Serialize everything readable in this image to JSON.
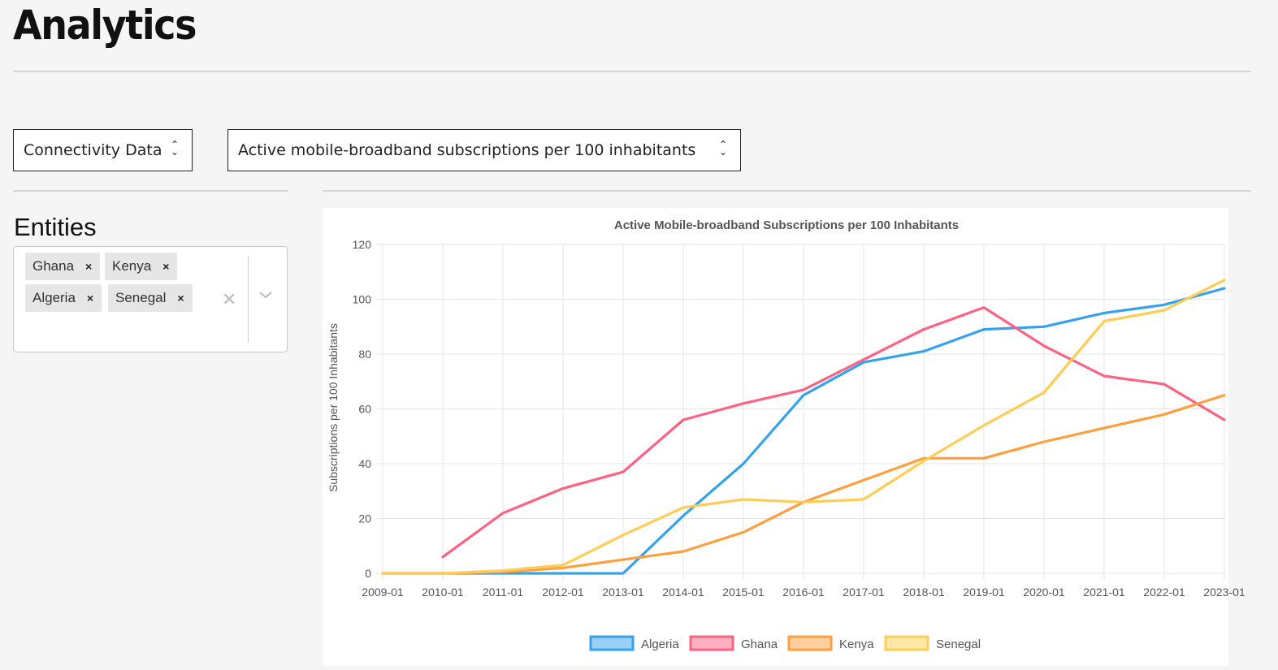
{
  "page": {
    "title": "Analytics"
  },
  "controls": {
    "dataset_select": {
      "value": "Connectivity Data"
    },
    "indicator_select": {
      "value": "Active mobile-broadband subscriptions per 100 inhabitants"
    }
  },
  "entities": {
    "heading": "Entities",
    "selected": [
      "Ghana",
      "Kenya",
      "Algeria",
      "Senegal"
    ],
    "remove_symbol": "×",
    "clear_symbol": "✕"
  },
  "colors": {
    "Algeria": "#36a2eb",
    "Ghana": "#ff6384",
    "Kenya": "#ff9f40",
    "Senegal": "#ffcd56"
  },
  "chart_data": {
    "type": "line",
    "title": "Active Mobile-broadband Subscriptions per 100 Inhabitants",
    "xlabel": "",
    "ylabel": "Subscriptions per 100 Inhabitants",
    "ylim": [
      0,
      120
    ],
    "yticks": [
      0,
      20,
      40,
      60,
      80,
      100,
      120
    ],
    "grid": true,
    "legend_position": "bottom",
    "categories": [
      "2009-01",
      "2010-01",
      "2011-01",
      "2012-01",
      "2013-01",
      "2014-01",
      "2015-01",
      "2016-01",
      "2017-01",
      "2018-01",
      "2019-01",
      "2020-01",
      "2021-01",
      "2022-01",
      "2023-01"
    ],
    "series": [
      {
        "name": "Algeria",
        "values": [
          0,
          0,
          0,
          0,
          0,
          21,
          40,
          65,
          77,
          81,
          89,
          90,
          95,
          98,
          104
        ]
      },
      {
        "name": "Ghana",
        "values": [
          null,
          6,
          22,
          31,
          37,
          56,
          62,
          67,
          78,
          89,
          97,
          83,
          72,
          69,
          56
        ]
      },
      {
        "name": "Kenya",
        "values": [
          0,
          0,
          0.5,
          2,
          5,
          8,
          15,
          26,
          34,
          42,
          42,
          48,
          53,
          58,
          65
        ]
      },
      {
        "name": "Senegal",
        "values": [
          0,
          0,
          1,
          3,
          14,
          24,
          27,
          26,
          27,
          41,
          54,
          66,
          92,
          96,
          107
        ]
      }
    ]
  }
}
